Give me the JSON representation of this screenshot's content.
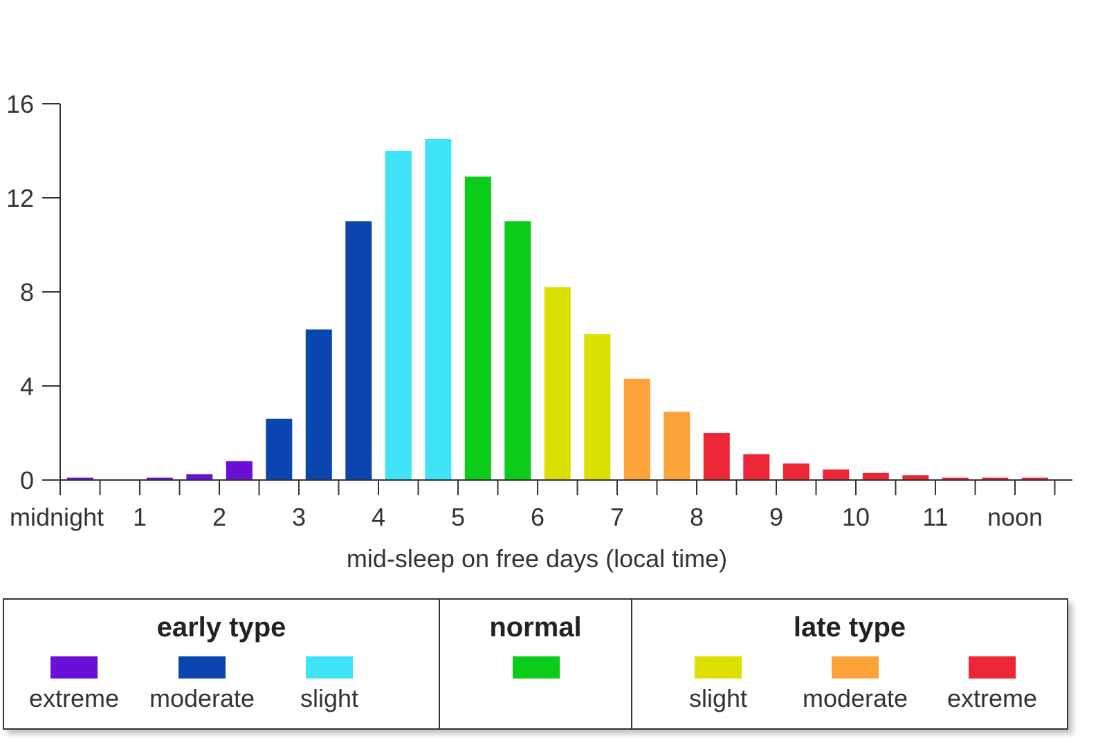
{
  "chart_data": {
    "type": "bar",
    "xlabel": "mid-sleep on free days (local time)",
    "ylabel": "",
    "ylim": [
      0,
      16
    ],
    "yticks": [
      0,
      4,
      8,
      12,
      16
    ],
    "xlim": [
      0,
      12.5
    ],
    "xtick_labels": [
      "midnight",
      "1",
      "2",
      "3",
      "4",
      "5",
      "6",
      "7",
      "8",
      "9",
      "10",
      "11",
      "noon"
    ],
    "bin_width_hours": 0.5,
    "bars": [
      {
        "start": 0.0,
        "value": 0.1,
        "category": "early-extreme"
      },
      {
        "start": 0.5,
        "value": 0.0,
        "category": "early-extreme"
      },
      {
        "start": 1.0,
        "value": 0.1,
        "category": "early-extreme"
      },
      {
        "start": 1.5,
        "value": 0.25,
        "category": "early-extreme"
      },
      {
        "start": 2.0,
        "value": 0.8,
        "category": "early-extreme"
      },
      {
        "start": 2.5,
        "value": 2.6,
        "category": "early-moderate"
      },
      {
        "start": 3.0,
        "value": 6.4,
        "category": "early-moderate"
      },
      {
        "start": 3.5,
        "value": 11.0,
        "category": "early-moderate"
      },
      {
        "start": 4.0,
        "value": 14.0,
        "category": "early-slight"
      },
      {
        "start": 4.5,
        "value": 14.5,
        "category": "early-slight"
      },
      {
        "start": 5.0,
        "value": 12.9,
        "category": "normal"
      },
      {
        "start": 5.5,
        "value": 11.0,
        "category": "normal"
      },
      {
        "start": 6.0,
        "value": 8.2,
        "category": "late-slight"
      },
      {
        "start": 6.5,
        "value": 6.2,
        "category": "late-slight"
      },
      {
        "start": 7.0,
        "value": 4.3,
        "category": "late-moderate"
      },
      {
        "start": 7.5,
        "value": 2.9,
        "category": "late-moderate"
      },
      {
        "start": 8.0,
        "value": 2.0,
        "category": "late-extreme"
      },
      {
        "start": 8.5,
        "value": 1.1,
        "category": "late-extreme"
      },
      {
        "start": 9.0,
        "value": 0.7,
        "category": "late-extreme"
      },
      {
        "start": 9.5,
        "value": 0.45,
        "category": "late-extreme"
      },
      {
        "start": 10.0,
        "value": 0.3,
        "category": "late-extreme"
      },
      {
        "start": 10.5,
        "value": 0.2,
        "category": "late-extreme"
      },
      {
        "start": 11.0,
        "value": 0.1,
        "category": "late-extreme"
      },
      {
        "start": 11.5,
        "value": 0.1,
        "category": "late-extreme"
      },
      {
        "start": 12.0,
        "value": 0.1,
        "category": "late-extreme"
      }
    ],
    "grid": false,
    "legend_placement": "bottom"
  },
  "colors": {
    "early-extreme": "#6a0fd8",
    "early-moderate": "#0a45b0",
    "early-slight": "#3fe3f7",
    "normal": "#0ccc1a",
    "late-slight": "#dbe000",
    "late-moderate": "#fba238",
    "late-extreme": "#ed2637"
  },
  "legend": {
    "early": {
      "title": "early type",
      "items": [
        {
          "label": "extreme",
          "color_key": "early-extreme"
        },
        {
          "label": "moderate",
          "color_key": "early-moderate"
        },
        {
          "label": "slight",
          "color_key": "early-slight"
        }
      ]
    },
    "normal": {
      "title": "normal",
      "items": [
        {
          "label": "",
          "color_key": "normal"
        }
      ]
    },
    "late": {
      "title": "late type",
      "items": [
        {
          "label": "slight",
          "color_key": "late-slight"
        },
        {
          "label": "moderate",
          "color_key": "late-moderate"
        },
        {
          "label": "extreme",
          "color_key": "late-extreme"
        }
      ]
    }
  }
}
